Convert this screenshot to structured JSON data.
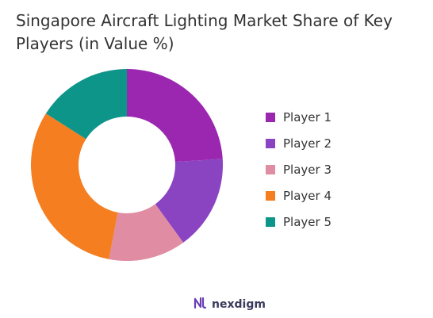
{
  "title": "Singapore Aircraft Lighting Market Share of Key Players (in Value %)",
  "chart_data": {
    "type": "pie",
    "donut": true,
    "categories": [
      "Player 1",
      "Player 2",
      "Player 3",
      "Player 4",
      "Player 5"
    ],
    "values": [
      24,
      16,
      13,
      31,
      16
    ],
    "colors": [
      "#9B27B0",
      "#8A44C1",
      "#E08CA2",
      "#F47E20",
      "#0E958A"
    ],
    "legend_position": "right"
  },
  "footer": {
    "brand": "nexdigm",
    "logo_icon": "nexdigm-logo-icon"
  }
}
